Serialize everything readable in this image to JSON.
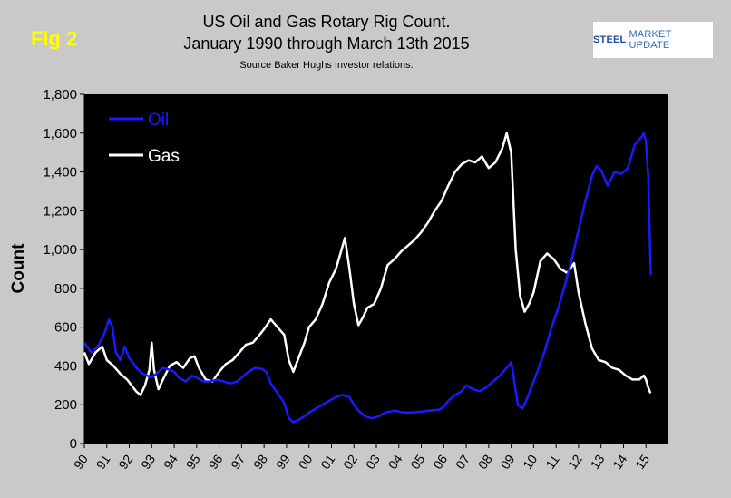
{
  "figure": {
    "fig_label": "Fig 2",
    "title_line1": "US Oil and Gas Rotary Rig Count.",
    "title_line2": "January 1990 through March 13th 2015",
    "source": "Source Baker Hughs Investor relations.",
    "logo_text_strong": "STEEL",
    "logo_text_rest": "MARKET UPDATE",
    "background_color": "#c9c9c9",
    "plot_background": "#000000"
  },
  "chart_data": {
    "type": "line",
    "title": "US Oil and Gas Rotary Rig Count. January 1990 through March 13th 2015",
    "ylabel": "Count",
    "xlabel": "",
    "ylim": [
      0,
      1800
    ],
    "xlim": [
      1990,
      2016
    ],
    "y_ticks": [
      0,
      200,
      400,
      600,
      800,
      1000,
      1200,
      1400,
      1600,
      1800
    ],
    "y_tick_labels": [
      "0",
      "200",
      "400",
      "600",
      "800",
      "1,000",
      "1,200",
      "1,400",
      "1,600",
      "1,800"
    ],
    "x_tick_values": [
      1990,
      1991,
      1992,
      1993,
      1994,
      1995,
      1996,
      1997,
      1998,
      1999,
      2000,
      2001,
      2002,
      2003,
      2004,
      2005,
      2006,
      2007,
      2008,
      2009,
      2010,
      2011,
      2012,
      2013,
      2014,
      2015
    ],
    "x_tick_labels": [
      "90",
      "91",
      "92",
      "93",
      "94",
      "95",
      "96",
      "97",
      "98",
      "99",
      "00",
      "01",
      "02",
      "03",
      "04",
      "05",
      "06",
      "07",
      "08",
      "09",
      "10",
      "11",
      "12",
      "13",
      "14",
      "15"
    ],
    "grid": false,
    "legend_position": "top-left",
    "series": [
      {
        "name": "Oil",
        "color": "#1a1aff",
        "points": [
          [
            1990.0,
            520
          ],
          [
            1990.3,
            470
          ],
          [
            1990.6,
            500
          ],
          [
            1990.9,
            570
          ],
          [
            1991.1,
            640
          ],
          [
            1991.25,
            600
          ],
          [
            1991.4,
            470
          ],
          [
            1991.6,
            430
          ],
          [
            1991.8,
            500
          ],
          [
            1992.0,
            440
          ],
          [
            1992.2,
            410
          ],
          [
            1992.4,
            380
          ],
          [
            1992.6,
            360
          ],
          [
            1992.8,
            350
          ],
          [
            1993.0,
            340
          ],
          [
            1993.2,
            360
          ],
          [
            1993.5,
            390
          ],
          [
            1993.8,
            380
          ],
          [
            1994.0,
            370
          ],
          [
            1994.2,
            340
          ],
          [
            1994.5,
            320
          ],
          [
            1994.8,
            350
          ],
          [
            1995.0,
            340
          ],
          [
            1995.3,
            320
          ],
          [
            1995.6,
            320
          ],
          [
            1995.9,
            330
          ],
          [
            1996.2,
            320
          ],
          [
            1996.5,
            310
          ],
          [
            1996.8,
            320
          ],
          [
            1997.0,
            340
          ],
          [
            1997.3,
            370
          ],
          [
            1997.6,
            390
          ],
          [
            1997.9,
            385
          ],
          [
            1998.1,
            370
          ],
          [
            1998.3,
            310
          ],
          [
            1998.6,
            260
          ],
          [
            1998.9,
            210
          ],
          [
            1999.1,
            130
          ],
          [
            1999.3,
            110
          ],
          [
            1999.5,
            120
          ],
          [
            1999.8,
            140
          ],
          [
            2000.0,
            160
          ],
          [
            2000.3,
            180
          ],
          [
            2000.6,
            200
          ],
          [
            2000.9,
            220
          ],
          [
            2001.2,
            240
          ],
          [
            2001.5,
            250
          ],
          [
            2001.8,
            240
          ],
          [
            2002.0,
            200
          ],
          [
            2002.2,
            170
          ],
          [
            2002.5,
            140
          ],
          [
            2002.8,
            130
          ],
          [
            2003.1,
            140
          ],
          [
            2003.4,
            160
          ],
          [
            2003.8,
            170
          ],
          [
            2004.2,
            160
          ],
          [
            2004.6,
            160
          ],
          [
            2005.0,
            165
          ],
          [
            2005.4,
            170
          ],
          [
            2005.8,
            175
          ],
          [
            2006.0,
            190
          ],
          [
            2006.2,
            220
          ],
          [
            2006.5,
            250
          ],
          [
            2006.8,
            270
          ],
          [
            2007.0,
            300
          ],
          [
            2007.3,
            280
          ],
          [
            2007.6,
            270
          ],
          [
            2007.9,
            290
          ],
          [
            2008.2,
            320
          ],
          [
            2008.5,
            350
          ],
          [
            2008.8,
            390
          ],
          [
            2009.0,
            420
          ],
          [
            2009.1,
            350
          ],
          [
            2009.3,
            200
          ],
          [
            2009.5,
            180
          ],
          [
            2009.7,
            230
          ],
          [
            2009.9,
            290
          ],
          [
            2010.2,
            380
          ],
          [
            2010.5,
            480
          ],
          [
            2010.8,
            600
          ],
          [
            2011.1,
            700
          ],
          [
            2011.4,
            820
          ],
          [
            2011.7,
            950
          ],
          [
            2011.9,
            1050
          ],
          [
            2012.1,
            1150
          ],
          [
            2012.3,
            1250
          ],
          [
            2012.6,
            1380
          ],
          [
            2012.8,
            1430
          ],
          [
            2013.0,
            1410
          ],
          [
            2013.3,
            1330
          ],
          [
            2013.6,
            1400
          ],
          [
            2013.9,
            1390
          ],
          [
            2014.2,
            1420
          ],
          [
            2014.5,
            1540
          ],
          [
            2014.8,
            1580
          ],
          [
            2014.9,
            1600
          ],
          [
            2015.0,
            1560
          ],
          [
            2015.1,
            1380
          ],
          [
            2015.2,
            920
          ],
          [
            2015.22,
            870
          ]
        ]
      },
      {
        "name": "Gas",
        "color": "#ffffff",
        "points": [
          [
            1990.0,
            470
          ],
          [
            1990.2,
            410
          ],
          [
            1990.5,
            470
          ],
          [
            1990.8,
            500
          ],
          [
            1991.0,
            430
          ],
          [
            1991.3,
            400
          ],
          [
            1991.6,
            360
          ],
          [
            1991.9,
            330
          ],
          [
            1992.1,
            300
          ],
          [
            1992.3,
            270
          ],
          [
            1992.5,
            250
          ],
          [
            1992.7,
            300
          ],
          [
            1992.9,
            380
          ],
          [
            1993.0,
            520
          ],
          [
            1993.1,
            380
          ],
          [
            1993.3,
            280
          ],
          [
            1993.5,
            330
          ],
          [
            1993.8,
            400
          ],
          [
            1994.1,
            420
          ],
          [
            1994.4,
            390
          ],
          [
            1994.7,
            440
          ],
          [
            1994.9,
            450
          ],
          [
            1995.1,
            390
          ],
          [
            1995.4,
            330
          ],
          [
            1995.7,
            320
          ],
          [
            1996.0,
            370
          ],
          [
            1996.3,
            410
          ],
          [
            1996.6,
            430
          ],
          [
            1996.9,
            470
          ],
          [
            1997.2,
            510
          ],
          [
            1997.5,
            520
          ],
          [
            1997.8,
            560
          ],
          [
            1998.0,
            590
          ],
          [
            1998.3,
            640
          ],
          [
            1998.6,
            600
          ],
          [
            1998.9,
            560
          ],
          [
            1999.1,
            430
          ],
          [
            1999.3,
            370
          ],
          [
            1999.5,
            430
          ],
          [
            1999.8,
            520
          ],
          [
            2000.0,
            600
          ],
          [
            2000.3,
            640
          ],
          [
            2000.6,
            720
          ],
          [
            2000.9,
            830
          ],
          [
            2001.2,
            900
          ],
          [
            2001.4,
            980
          ],
          [
            2001.6,
            1060
          ],
          [
            2001.8,
            900
          ],
          [
            2002.0,
            720
          ],
          [
            2002.2,
            610
          ],
          [
            2002.4,
            650
          ],
          [
            2002.6,
            700
          ],
          [
            2002.9,
            720
          ],
          [
            2003.2,
            800
          ],
          [
            2003.5,
            920
          ],
          [
            2003.8,
            950
          ],
          [
            2004.1,
            990
          ],
          [
            2004.4,
            1020
          ],
          [
            2004.7,
            1050
          ],
          [
            2005.0,
            1090
          ],
          [
            2005.3,
            1140
          ],
          [
            2005.6,
            1200
          ],
          [
            2005.9,
            1250
          ],
          [
            2006.2,
            1330
          ],
          [
            2006.5,
            1400
          ],
          [
            2006.8,
            1440
          ],
          [
            2007.1,
            1460
          ],
          [
            2007.4,
            1450
          ],
          [
            2007.7,
            1480
          ],
          [
            2008.0,
            1420
          ],
          [
            2008.3,
            1450
          ],
          [
            2008.6,
            1520
          ],
          [
            2008.8,
            1600
          ],
          [
            2009.0,
            1500
          ],
          [
            2009.2,
            1000
          ],
          [
            2009.4,
            760
          ],
          [
            2009.6,
            680
          ],
          [
            2009.8,
            720
          ],
          [
            2010.0,
            780
          ],
          [
            2010.3,
            940
          ],
          [
            2010.6,
            980
          ],
          [
            2010.9,
            950
          ],
          [
            2011.2,
            900
          ],
          [
            2011.5,
            880
          ],
          [
            2011.8,
            930
          ],
          [
            2012.0,
            780
          ],
          [
            2012.3,
            620
          ],
          [
            2012.6,
            490
          ],
          [
            2012.9,
            430
          ],
          [
            2013.2,
            420
          ],
          [
            2013.5,
            390
          ],
          [
            2013.8,
            380
          ],
          [
            2014.1,
            350
          ],
          [
            2014.4,
            330
          ],
          [
            2014.7,
            330
          ],
          [
            2014.9,
            350
          ],
          [
            2015.0,
            330
          ],
          [
            2015.1,
            290
          ],
          [
            2015.2,
            260
          ]
        ]
      }
    ]
  }
}
